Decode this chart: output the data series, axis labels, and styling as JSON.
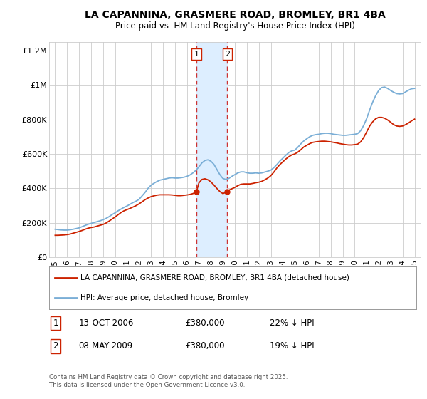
{
  "title": "LA CAPANNINA, GRASMERE ROAD, BROMLEY, BR1 4BA",
  "subtitle": "Price paid vs. HM Land Registry's House Price Index (HPI)",
  "background_color": "#ffffff",
  "plot_bg_color": "#ffffff",
  "grid_color": "#cccccc",
  "legend1_label": "LA CAPANNINA, GRASMERE ROAD, BROMLEY, BR1 4BA (detached house)",
  "legend2_label": "HPI: Average price, detached house, Bromley",
  "transaction1_num": "1",
  "transaction1_date": "13-OCT-2006",
  "transaction1_price": "£380,000",
  "transaction1_hpi": "22% ↓ HPI",
  "transaction2_num": "2",
  "transaction2_date": "08-MAY-2009",
  "transaction2_price": "£380,000",
  "transaction2_hpi": "19% ↓ HPI",
  "footer": "Contains HM Land Registry data © Crown copyright and database right 2025.\nThis data is licensed under the Open Government Licence v3.0.",
  "sale1_x": 2006.79,
  "sale1_y": 380000,
  "sale2_x": 2009.36,
  "sale2_y": 380000,
  "shade_x1": 2006.79,
  "shade_x2": 2009.36,
  "vline1_x": 2006.79,
  "vline2_x": 2009.36,
  "hpi_line_color": "#7aaed6",
  "price_line_color": "#cc2200",
  "shade_color": "#ddeeff",
  "vline_color": "#cc3333",
  "ylim": [
    0,
    1250000
  ],
  "xlim": [
    1994.5,
    2025.5
  ],
  "yticks": [
    0,
    200000,
    400000,
    600000,
    800000,
    1000000,
    1200000
  ],
  "ytick_labels": [
    "£0",
    "£200K",
    "£400K",
    "£600K",
    "£800K",
    "£1M",
    "£1.2M"
  ],
  "xticks": [
    1995,
    1996,
    1997,
    1998,
    1999,
    2000,
    2001,
    2002,
    2003,
    2004,
    2005,
    2006,
    2007,
    2008,
    2009,
    2010,
    2011,
    2012,
    2013,
    2014,
    2015,
    2016,
    2017,
    2018,
    2019,
    2020,
    2021,
    2022,
    2023,
    2024,
    2025
  ],
  "hpi_data": [
    [
      1995.0,
      163000
    ],
    [
      1995.25,
      161000
    ],
    [
      1995.5,
      159000
    ],
    [
      1995.75,
      158000
    ],
    [
      1996.0,
      158000
    ],
    [
      1996.25,
      160000
    ],
    [
      1996.5,
      163000
    ],
    [
      1996.75,
      167000
    ],
    [
      1997.0,
      171000
    ],
    [
      1997.25,
      178000
    ],
    [
      1997.5,
      185000
    ],
    [
      1997.75,
      192000
    ],
    [
      1998.0,
      197000
    ],
    [
      1998.25,
      202000
    ],
    [
      1998.5,
      207000
    ],
    [
      1998.75,
      212000
    ],
    [
      1999.0,
      218000
    ],
    [
      1999.25,
      226000
    ],
    [
      1999.5,
      236000
    ],
    [
      1999.75,
      248000
    ],
    [
      2000.0,
      258000
    ],
    [
      2000.25,
      270000
    ],
    [
      2000.5,
      280000
    ],
    [
      2000.75,
      290000
    ],
    [
      2001.0,
      298000
    ],
    [
      2001.25,
      308000
    ],
    [
      2001.5,
      318000
    ],
    [
      2001.75,
      326000
    ],
    [
      2002.0,
      336000
    ],
    [
      2002.25,
      356000
    ],
    [
      2002.5,
      376000
    ],
    [
      2002.75,
      400000
    ],
    [
      2003.0,
      418000
    ],
    [
      2003.25,
      430000
    ],
    [
      2003.5,
      440000
    ],
    [
      2003.75,
      448000
    ],
    [
      2004.0,
      452000
    ],
    [
      2004.25,
      456000
    ],
    [
      2004.5,
      460000
    ],
    [
      2004.75,
      462000
    ],
    [
      2005.0,
      460000
    ],
    [
      2005.25,
      460000
    ],
    [
      2005.5,
      462000
    ],
    [
      2005.75,
      465000
    ],
    [
      2006.0,
      470000
    ],
    [
      2006.25,
      478000
    ],
    [
      2006.5,
      490000
    ],
    [
      2006.75,
      505000
    ],
    [
      2007.0,
      525000
    ],
    [
      2007.25,
      548000
    ],
    [
      2007.5,
      562000
    ],
    [
      2007.75,
      566000
    ],
    [
      2008.0,
      558000
    ],
    [
      2008.25,
      540000
    ],
    [
      2008.5,
      510000
    ],
    [
      2008.75,
      480000
    ],
    [
      2009.0,
      458000
    ],
    [
      2009.25,
      452000
    ],
    [
      2009.5,
      458000
    ],
    [
      2009.75,
      470000
    ],
    [
      2010.0,
      480000
    ],
    [
      2010.25,
      490000
    ],
    [
      2010.5,
      496000
    ],
    [
      2010.75,
      496000
    ],
    [
      2011.0,
      491000
    ],
    [
      2011.25,
      488000
    ],
    [
      2011.5,
      488000
    ],
    [
      2011.75,
      490000
    ],
    [
      2012.0,
      488000
    ],
    [
      2012.25,
      490000
    ],
    [
      2012.5,
      495000
    ],
    [
      2012.75,
      500000
    ],
    [
      2013.0,
      506000
    ],
    [
      2013.25,
      520000
    ],
    [
      2013.5,
      538000
    ],
    [
      2013.75,
      558000
    ],
    [
      2014.0,
      575000
    ],
    [
      2014.25,
      592000
    ],
    [
      2014.5,
      608000
    ],
    [
      2014.75,
      618000
    ],
    [
      2015.0,
      622000
    ],
    [
      2015.25,
      638000
    ],
    [
      2015.5,
      658000
    ],
    [
      2015.75,
      675000
    ],
    [
      2016.0,
      688000
    ],
    [
      2016.25,
      700000
    ],
    [
      2016.5,
      708000
    ],
    [
      2016.75,
      712000
    ],
    [
      2017.0,
      714000
    ],
    [
      2017.25,
      718000
    ],
    [
      2017.5,
      720000
    ],
    [
      2017.75,
      720000
    ],
    [
      2018.0,
      718000
    ],
    [
      2018.25,
      714000
    ],
    [
      2018.5,
      712000
    ],
    [
      2018.75,
      710000
    ],
    [
      2019.0,
      708000
    ],
    [
      2019.25,
      708000
    ],
    [
      2019.5,
      710000
    ],
    [
      2019.75,
      712000
    ],
    [
      2020.0,
      714000
    ],
    [
      2020.25,
      718000
    ],
    [
      2020.5,
      735000
    ],
    [
      2020.75,
      765000
    ],
    [
      2021.0,
      805000
    ],
    [
      2021.25,
      855000
    ],
    [
      2021.5,
      900000
    ],
    [
      2021.75,
      938000
    ],
    [
      2022.0,
      968000
    ],
    [
      2022.25,
      985000
    ],
    [
      2022.5,
      988000
    ],
    [
      2022.75,
      980000
    ],
    [
      2023.0,
      968000
    ],
    [
      2023.25,
      958000
    ],
    [
      2023.5,
      950000
    ],
    [
      2023.75,
      948000
    ],
    [
      2024.0,
      950000
    ],
    [
      2024.25,
      960000
    ],
    [
      2024.5,
      970000
    ],
    [
      2024.75,
      978000
    ],
    [
      2025.0,
      980000
    ]
  ],
  "price_data": [
    [
      1995.0,
      128000
    ],
    [
      1995.25,
      128000
    ],
    [
      1995.5,
      129000
    ],
    [
      1995.75,
      130000
    ],
    [
      1996.0,
      132000
    ],
    [
      1996.25,
      135000
    ],
    [
      1996.5,
      140000
    ],
    [
      1996.75,
      145000
    ],
    [
      1997.0,
      150000
    ],
    [
      1997.25,
      156000
    ],
    [
      1997.5,
      163000
    ],
    [
      1997.75,
      169000
    ],
    [
      1998.0,
      173000
    ],
    [
      1998.25,
      176000
    ],
    [
      1998.5,
      181000
    ],
    [
      1998.75,
      186000
    ],
    [
      1999.0,
      191000
    ],
    [
      1999.25,
      199000
    ],
    [
      1999.5,
      210000
    ],
    [
      1999.75,
      222000
    ],
    [
      2000.0,
      234000
    ],
    [
      2000.25,
      247000
    ],
    [
      2000.5,
      260000
    ],
    [
      2000.75,
      270000
    ],
    [
      2001.0,
      277000
    ],
    [
      2001.25,
      284000
    ],
    [
      2001.5,
      292000
    ],
    [
      2001.75,
      300000
    ],
    [
      2002.0,
      310000
    ],
    [
      2002.25,
      322000
    ],
    [
      2002.5,
      334000
    ],
    [
      2002.75,
      344000
    ],
    [
      2003.0,
      352000
    ],
    [
      2003.25,
      357000
    ],
    [
      2003.5,
      361000
    ],
    [
      2003.75,
      363000
    ],
    [
      2004.0,
      363000
    ],
    [
      2004.25,
      363000
    ],
    [
      2004.5,
      363000
    ],
    [
      2004.75,
      362000
    ],
    [
      2005.0,
      360000
    ],
    [
      2005.25,
      358000
    ],
    [
      2005.5,
      358000
    ],
    [
      2005.75,
      360000
    ],
    [
      2006.0,
      362000
    ],
    [
      2006.25,
      365000
    ],
    [
      2006.5,
      370000
    ],
    [
      2006.79,
      380000
    ],
    [
      2007.0,
      432000
    ],
    [
      2007.25,
      452000
    ],
    [
      2007.5,
      456000
    ],
    [
      2007.75,
      450000
    ],
    [
      2008.0,
      438000
    ],
    [
      2008.25,
      420000
    ],
    [
      2008.5,
      400000
    ],
    [
      2008.75,
      382000
    ],
    [
      2009.0,
      370000
    ],
    [
      2009.36,
      380000
    ],
    [
      2009.5,
      390000
    ],
    [
      2009.75,
      398000
    ],
    [
      2010.0,
      406000
    ],
    [
      2010.25,
      416000
    ],
    [
      2010.5,
      424000
    ],
    [
      2010.75,
      426000
    ],
    [
      2011.0,
      426000
    ],
    [
      2011.25,
      426000
    ],
    [
      2011.5,
      429000
    ],
    [
      2011.75,
      433000
    ],
    [
      2012.0,
      436000
    ],
    [
      2012.25,
      441000
    ],
    [
      2012.5,
      450000
    ],
    [
      2012.75,
      460000
    ],
    [
      2013.0,
      474000
    ],
    [
      2013.25,
      494000
    ],
    [
      2013.5,
      518000
    ],
    [
      2013.75,
      538000
    ],
    [
      2014.0,
      554000
    ],
    [
      2014.25,
      570000
    ],
    [
      2014.5,
      584000
    ],
    [
      2014.75,
      594000
    ],
    [
      2015.0,
      600000
    ],
    [
      2015.25,
      610000
    ],
    [
      2015.5,
      624000
    ],
    [
      2015.75,
      640000
    ],
    [
      2016.0,
      650000
    ],
    [
      2016.25,
      660000
    ],
    [
      2016.5,
      667000
    ],
    [
      2016.75,
      670000
    ],
    [
      2017.0,
      672000
    ],
    [
      2017.25,
      674000
    ],
    [
      2017.5,
      674000
    ],
    [
      2017.75,
      672000
    ],
    [
      2018.0,
      670000
    ],
    [
      2018.25,
      667000
    ],
    [
      2018.5,
      664000
    ],
    [
      2018.75,
      660000
    ],
    [
      2019.0,
      657000
    ],
    [
      2019.25,
      654000
    ],
    [
      2019.5,
      652000
    ],
    [
      2019.75,
      652000
    ],
    [
      2020.0,
      654000
    ],
    [
      2020.25,
      657000
    ],
    [
      2020.5,
      670000
    ],
    [
      2020.75,
      695000
    ],
    [
      2021.0,
      728000
    ],
    [
      2021.25,
      762000
    ],
    [
      2021.5,
      786000
    ],
    [
      2021.75,
      804000
    ],
    [
      2022.0,
      812000
    ],
    [
      2022.25,
      812000
    ],
    [
      2022.5,
      807000
    ],
    [
      2022.75,
      797000
    ],
    [
      2023.0,
      784000
    ],
    [
      2023.25,
      770000
    ],
    [
      2023.5,
      762000
    ],
    [
      2023.75,
      760000
    ],
    [
      2024.0,
      762000
    ],
    [
      2024.25,
      770000
    ],
    [
      2024.5,
      780000
    ],
    [
      2024.75,
      792000
    ],
    [
      2025.0,
      802000
    ]
  ]
}
